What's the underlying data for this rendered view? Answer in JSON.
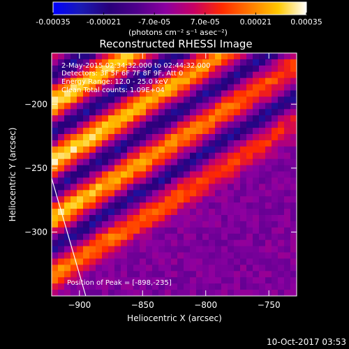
{
  "colorbar": {
    "ticks": [
      "-0.00035",
      "-0.00021",
      "-7.0e-05",
      "7.0e-05",
      "0.00021",
      "0.00035"
    ],
    "unit_label": "(photons cm⁻² s⁻¹ asec⁻²)",
    "range": [
      -0.00035,
      0.00035
    ],
    "palette": [
      "#0000ff",
      "#1a1ab4",
      "#28007a",
      "#50008c",
      "#8c00a0",
      "#c80064",
      "#ff2a00",
      "#ff7a00",
      "#ffc800",
      "#ffffff"
    ]
  },
  "chart_data": {
    "type": "heatmap",
    "title": "Reconstructed RHESSI Image",
    "xlabel": "Heliocentric X (arcsec)",
    "ylabel": "Heliocentric Y (arcsec)",
    "xlim": [
      -922,
      -728
    ],
    "ylim": [
      -350,
      -160
    ],
    "x_ticks": [
      -900,
      -850,
      -800,
      -750
    ],
    "y_ticks": [
      -200,
      -250,
      -300
    ],
    "annotations": [
      "2-May-2015 02:34:32.000 to 02:44:32.000",
      "Detectors: 3F 5F 6F 7F 8F 9F, Att 0",
      "Energy Range: 12.0 - 25.0 keV",
      "Clean    Total counts: 1.09E+04"
    ],
    "peak_label": "Position of Peak = [-898,-235]",
    "peak_position": [
      -898,
      -235
    ],
    "limb_line": [
      [
        -922,
        -258
      ],
      [
        -895,
        -350
      ]
    ],
    "ridges": [
      {
        "x0": -922,
        "y0": -200,
        "strength": 1.0
      },
      {
        "x0": -922,
        "y0": -245,
        "strength": 1.0
      },
      {
        "x0": -922,
        "y0": -290,
        "strength": 0.9
      },
      {
        "x0": -922,
        "y0": -335,
        "strength": 0.7
      },
      {
        "x0": -922,
        "y0": -155,
        "strength": 0.5
      }
    ],
    "ridge_slope": 0.62
  },
  "timestamp": "10-Oct-2017 03:53"
}
